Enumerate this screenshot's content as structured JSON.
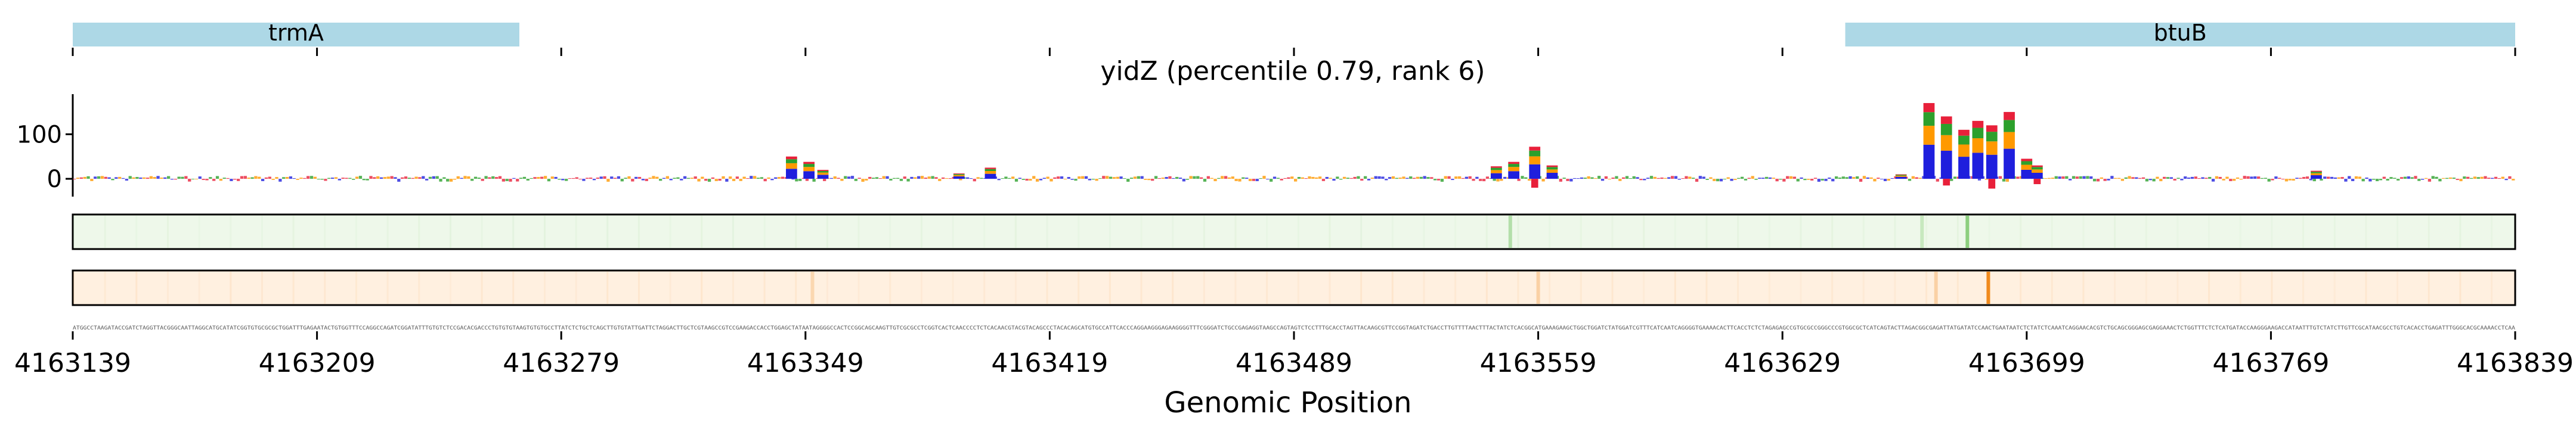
{
  "title": "yidZ (percentile 0.79, rank 6)",
  "xlabel": "Genomic Position",
  "genes": [
    {
      "name": "trmA",
      "start": 4163139,
      "end": 4163267
    },
    {
      "name": "btuB",
      "start": 4163647,
      "end": 4163839
    }
  ],
  "colors": {
    "gene_bar": "#add8e6",
    "base_A": "#2ca02c",
    "base_C": "#1f1fdd",
    "base_G": "#ff9900",
    "base_T": "#e8203a",
    "track_green": "#eef8ea",
    "track_orange": "#fff0e0",
    "highlight_orange": "#f08a1e",
    "highlight_green": "#8ccf7e"
  },
  "chart_data": {
    "type": "sequence-logo",
    "title": "yidZ (percentile 0.79, rank 6)",
    "xlabel": "Genomic Position",
    "xlim": [
      4163139,
      4163839
    ],
    "x_ticks": [
      4163139,
      4163209,
      4163279,
      4163349,
      4163419,
      4163489,
      4163559,
      4163629,
      4163699,
      4163769,
      4163839
    ],
    "ylabel": "",
    "ylim": [
      -40,
      190
    ],
    "y_ticks": [
      0,
      100
    ],
    "peaks": [
      {
        "position": 4163345,
        "height": 50
      },
      {
        "position": 4163350,
        "height": 38
      },
      {
        "position": 4163354,
        "height": 20
      },
      {
        "position": 4163393,
        "height": 12
      },
      {
        "position": 4163402,
        "height": 25
      },
      {
        "position": 4163547,
        "height": 28
      },
      {
        "position": 4163552,
        "height": 38
      },
      {
        "position": 4163558,
        "height": 72
      },
      {
        "position": 4163563,
        "height": 30
      },
      {
        "position": 4163663,
        "height": 10
      },
      {
        "position": 4163671,
        "height": 170
      },
      {
        "position": 4163676,
        "height": 140
      },
      {
        "position": 4163681,
        "height": 110
      },
      {
        "position": 4163685,
        "height": 130
      },
      {
        "position": 4163689,
        "height": 120
      },
      {
        "position": 4163694,
        "height": 150
      },
      {
        "position": 4163699,
        "height": 45
      },
      {
        "position": 4163702,
        "height": 30
      },
      {
        "position": 4163782,
        "height": 18
      }
    ],
    "negative_dips": [
      {
        "position": 4163558,
        "depth": -20
      },
      {
        "position": 4163676,
        "depth": -15
      },
      {
        "position": 4163689,
        "depth": -22
      },
      {
        "position": 4163702,
        "depth": -12
      }
    ],
    "track1_highlights": [
      {
        "position": 4163551,
        "intensity": 0.6
      },
      {
        "position": 4163682,
        "intensity": 1.0
      },
      {
        "position": 4163669,
        "intensity": 0.4
      }
    ],
    "track2_highlights": [
      {
        "position": 4163688,
        "intensity": 1.0
      },
      {
        "position": 4163351,
        "intensity": 0.25
      },
      {
        "position": 4163559,
        "intensity": 0.3
      },
      {
        "position": 4163673,
        "intensity": 0.3
      }
    ]
  }
}
